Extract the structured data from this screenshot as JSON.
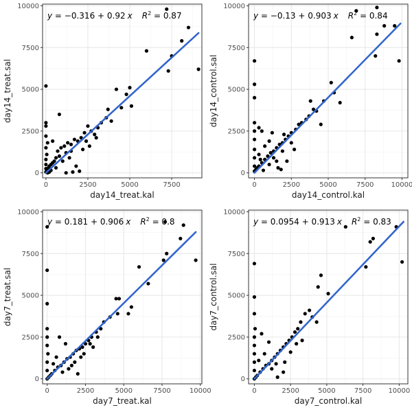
{
  "colors": {
    "panel_bg": "#ffffff",
    "grid_major": "#e6e6e6",
    "grid_minor": "#f2f2f2",
    "border": "#333333",
    "point": "#000000",
    "line": "#3366cc"
  },
  "chart_data": [
    {
      "type": "scatter",
      "id": "day14-treat",
      "xlabel": "day14_treat.kal",
      "ylabel": "day14_treat.sal",
      "xlim": [
        -200,
        9300
      ],
      "ylim": [
        -300,
        10100
      ],
      "xticks": [
        0,
        2500,
        5000,
        7500
      ],
      "xtick_labels": [
        "0",
        "2500",
        "5000",
        "7500"
      ],
      "yticks": [
        0,
        2500,
        5000,
        7500,
        10000
      ],
      "ytick_labels": [
        "0",
        "2500",
        "5000",
        "7500",
        "10000"
      ],
      "fit": {
        "intercept": -0.316,
        "slope": 0.92,
        "x_range": [
          0,
          9100
        ]
      },
      "equation": {
        "y_var": "y",
        "eq_sign": " = ",
        "intercept": "−0.316",
        "plus": " + ",
        "slope": "0.92",
        "x_var": "x",
        "r2_label": "R",
        "r2_sup": "2",
        "r2_value": " = 0.87"
      },
      "points": [
        [
          7200,
          9800
        ],
        [
          8500,
          8700
        ],
        [
          8100,
          7900
        ],
        [
          7500,
          7000
        ],
        [
          6000,
          7300
        ],
        [
          7300,
          6100
        ],
        [
          9100,
          6200
        ],
        [
          5000,
          5100
        ],
        [
          4200,
          5000
        ],
        [
          4800,
          4700
        ],
        [
          5100,
          4000
        ],
        [
          4500,
          3900
        ],
        [
          3700,
          3800
        ],
        [
          3600,
          3300
        ],
        [
          3900,
          3100
        ],
        [
          3300,
          3000
        ],
        [
          3100,
          2700
        ],
        [
          2700,
          2500
        ],
        [
          2500,
          2800
        ],
        [
          2300,
          2400
        ],
        [
          2900,
          2300
        ],
        [
          2100,
          2100
        ],
        [
          1900,
          1900
        ],
        [
          1700,
          2000
        ],
        [
          1500,
          1700
        ],
        [
          1300,
          1800
        ],
        [
          1100,
          1600
        ],
        [
          900,
          1500
        ],
        [
          1200,
          1200
        ],
        [
          800,
          1000
        ],
        [
          600,
          900
        ],
        [
          700,
          1300
        ],
        [
          500,
          700
        ],
        [
          400,
          600
        ],
        [
          300,
          500
        ],
        [
          200,
          400
        ],
        [
          150,
          300
        ],
        [
          100,
          200
        ],
        [
          50,
          100
        ],
        [
          0,
          50
        ],
        [
          0,
          250
        ],
        [
          0,
          500
        ],
        [
          0,
          800
        ],
        [
          50,
          1100
        ],
        [
          0,
          1500
        ],
        [
          100,
          1800
        ],
        [
          0,
          2200
        ],
        [
          0,
          2800
        ],
        [
          0,
          3000
        ],
        [
          0,
          5200
        ],
        [
          800,
          3500
        ],
        [
          1500,
          1300
        ],
        [
          1800,
          400
        ],
        [
          2000,
          100
        ],
        [
          1200,
          0
        ],
        [
          1600,
          50
        ],
        [
          2600,
          1600
        ],
        [
          2200,
          1400
        ],
        [
          3000,
          2100
        ],
        [
          1400,
          900
        ],
        [
          1000,
          700
        ],
        [
          600,
          300
        ],
        [
          300,
          150
        ],
        [
          200,
          50
        ],
        [
          100,
          0
        ],
        [
          400,
          1900
        ],
        [
          2400,
          1900
        ]
      ]
    },
    {
      "type": "scatter",
      "id": "day14-control",
      "xlabel": "day14_control.kal",
      "ylabel": "day14_control.sal",
      "xlim": [
        -400,
        10400
      ],
      "ylim": [
        -300,
        10100
      ],
      "xticks": [
        0,
        2500,
        5000,
        7500,
        10000
      ],
      "xtick_labels": [
        "0",
        "2500",
        "5000",
        "7500",
        "10000"
      ],
      "yticks": [
        0,
        2500,
        5000,
        7500,
        10000
      ],
      "ytick_labels": [
        "0",
        "2500",
        "5000",
        "7500",
        "10000"
      ],
      "fit": {
        "intercept": -0.13,
        "slope": 0.903,
        "x_range": [
          0,
          9900
        ]
      },
      "equation": {
        "y_var": "y",
        "eq_sign": " = ",
        "intercept": "−0.13",
        "plus": " + ",
        "slope": "0.903",
        "x_var": "x",
        "r2_label": "R",
        "r2_sup": "2",
        "r2_value": " = 0.84"
      },
      "points": [
        [
          6900,
          9700
        ],
        [
          8300,
          9900
        ],
        [
          8800,
          8800
        ],
        [
          9500,
          8800
        ],
        [
          8300,
          8300
        ],
        [
          6600,
          8100
        ],
        [
          9800,
          6700
        ],
        [
          8200,
          7000
        ],
        [
          0,
          6700
        ],
        [
          0,
          5300
        ],
        [
          5200,
          5400
        ],
        [
          5400,
          4800
        ],
        [
          5800,
          4200
        ],
        [
          4700,
          4300
        ],
        [
          4200,
          3700
        ],
        [
          3700,
          3400
        ],
        [
          3500,
          3200
        ],
        [
          3200,
          3000
        ],
        [
          3000,
          2900
        ],
        [
          2800,
          2600
        ],
        [
          2500,
          2400
        ],
        [
          2300,
          2200
        ],
        [
          2100,
          2000
        ],
        [
          1900,
          1800
        ],
        [
          1700,
          1700
        ],
        [
          1500,
          1500
        ],
        [
          1300,
          1300
        ],
        [
          1100,
          1200
        ],
        [
          900,
          1000
        ],
        [
          700,
          800
        ],
        [
          500,
          600
        ],
        [
          300,
          400
        ],
        [
          200,
          300
        ],
        [
          100,
          200
        ],
        [
          0,
          100
        ],
        [
          0,
          400
        ],
        [
          0,
          900
        ],
        [
          0,
          1400
        ],
        [
          0,
          2000
        ],
        [
          0,
          2500
        ],
        [
          0,
          3000
        ],
        [
          0,
          4500
        ],
        [
          500,
          2500
        ],
        [
          1000,
          1900
        ],
        [
          300,
          1100
        ],
        [
          700,
          1600
        ],
        [
          1500,
          700
        ],
        [
          1800,
          200
        ],
        [
          2200,
          700
        ],
        [
          2700,
          1400
        ],
        [
          4500,
          2900
        ],
        [
          4000,
          3800
        ],
        [
          3800,
          4300
        ],
        [
          1200,
          2400
        ],
        [
          300,
          2700
        ],
        [
          1600,
          300
        ],
        [
          2500,
          1800
        ],
        [
          600,
          150
        ],
        [
          1000,
          500
        ],
        [
          1300,
          900
        ],
        [
          1900,
          1300
        ],
        [
          400,
          800
        ],
        [
          2000,
          2300
        ]
      ]
    },
    {
      "type": "scatter",
      "id": "day7-treat",
      "xlabel": "day7_treat.kal",
      "ylabel": "day7_treat.sal",
      "xlim": [
        -300,
        10100
      ],
      "ylim": [
        -300,
        10100
      ],
      "xticks": [
        0,
        2500,
        5000,
        7500,
        10000
      ],
      "xtick_labels": [
        "0",
        "2500",
        "5000",
        "7500",
        "10000"
      ],
      "yticks": [
        0,
        2500,
        5000,
        7500,
        10000
      ],
      "ytick_labels": [
        "0",
        "2500",
        "5000",
        "7500",
        "10000"
      ],
      "fit": {
        "intercept": 0.181,
        "slope": 0.906,
        "x_range": [
          0,
          9700
        ]
      },
      "equation": {
        "y_var": "y",
        "eq_sign": " = ",
        "intercept": "0.181",
        "plus": " + ",
        "slope": "0.906",
        "x_var": "x",
        "r2_label": "R",
        "r2_sup": "2",
        "r2_value": " = 0.8"
      },
      "points": [
        [
          7700,
          9400
        ],
        [
          8900,
          9200
        ],
        [
          8700,
          8400
        ],
        [
          7800,
          7500
        ],
        [
          7600,
          7100
        ],
        [
          9700,
          7100
        ],
        [
          6000,
          6700
        ],
        [
          6600,
          5700
        ],
        [
          4500,
          4800
        ],
        [
          4700,
          4800
        ],
        [
          5500,
          4300
        ],
        [
          5300,
          3900
        ],
        [
          4600,
          3900
        ],
        [
          0,
          9100
        ],
        [
          0,
          6500
        ],
        [
          0,
          4500
        ],
        [
          0,
          3000
        ],
        [
          0,
          2500
        ],
        [
          0,
          2000
        ],
        [
          50,
          1500
        ],
        [
          0,
          1000
        ],
        [
          3700,
          3400
        ],
        [
          3500,
          3000
        ],
        [
          3200,
          2800
        ],
        [
          2900,
          2500
        ],
        [
          2700,
          2300
        ],
        [
          2500,
          2100
        ],
        [
          2300,
          1900
        ],
        [
          2100,
          1800
        ],
        [
          1900,
          1700
        ],
        [
          1700,
          1500
        ],
        [
          1500,
          1300
        ],
        [
          1300,
          1200
        ],
        [
          1100,
          1000
        ],
        [
          900,
          800
        ],
        [
          700,
          700
        ],
        [
          500,
          500
        ],
        [
          300,
          300
        ],
        [
          200,
          200
        ],
        [
          100,
          100
        ],
        [
          0,
          0
        ],
        [
          0,
          500
        ],
        [
          800,
          2500
        ],
        [
          1200,
          2100
        ],
        [
          1600,
          800
        ],
        [
          2000,
          300
        ],
        [
          1800,
          1000
        ],
        [
          2400,
          1500
        ],
        [
          2800,
          2100
        ],
        [
          3300,
          2500
        ],
        [
          4100,
          3700
        ],
        [
          600,
          1300
        ],
        [
          400,
          900
        ],
        [
          1000,
          400
        ],
        [
          1400,
          600
        ],
        [
          3000,
          1900
        ],
        [
          2200,
          1300
        ]
      ]
    },
    {
      "type": "scatter",
      "id": "day7-control",
      "xlabel": "day7_control.kal",
      "ylabel": "day7_control.sal",
      "xlim": [
        -400,
        10600
      ],
      "ylim": [
        -300,
        10100
      ],
      "xticks": [
        0,
        2500,
        5000,
        7500,
        10000
      ],
      "xtick_labels": [
        "0",
        "2500",
        "5000",
        "7500",
        "10000"
      ],
      "yticks": [
        0,
        2500,
        5000,
        7500,
        10000
      ],
      "ytick_labels": [
        "0",
        "2500",
        "5000",
        "7500",
        "10000"
      ],
      "fit": {
        "intercept": 0.0954,
        "slope": 0.913,
        "x_range": [
          0,
          10300
        ]
      },
      "equation": {
        "y_var": "y",
        "eq_sign": " = ",
        "intercept": "0.0954",
        "plus": " + ",
        "slope": "0.913",
        "x_var": "x",
        "r2_label": "R",
        "r2_sup": "2",
        "r2_value": " = 0.83"
      },
      "points": [
        [
          6300,
          9100
        ],
        [
          9800,
          9100
        ],
        [
          8200,
          8400
        ],
        [
          8000,
          8200
        ],
        [
          7700,
          6700
        ],
        [
          10200,
          7000
        ],
        [
          0,
          6900
        ],
        [
          0,
          4900
        ],
        [
          0,
          3900
        ],
        [
          4600,
          6200
        ],
        [
          4400,
          5500
        ],
        [
          5100,
          5100
        ],
        [
          3800,
          4100
        ],
        [
          4000,
          3700
        ],
        [
          3500,
          3900
        ],
        [
          3200,
          3400
        ],
        [
          3000,
          3000
        ],
        [
          2800,
          2800
        ],
        [
          2600,
          2500
        ],
        [
          2400,
          2300
        ],
        [
          2200,
          2100
        ],
        [
          2000,
          1900
        ],
        [
          1800,
          1700
        ],
        [
          1600,
          1500
        ],
        [
          1400,
          1300
        ],
        [
          1200,
          1100
        ],
        [
          1000,
          900
        ],
        [
          800,
          800
        ],
        [
          600,
          600
        ],
        [
          400,
          400
        ],
        [
          200,
          200
        ],
        [
          100,
          100
        ],
        [
          0,
          0
        ],
        [
          0,
          500
        ],
        [
          0,
          1000
        ],
        [
          0,
          1500
        ],
        [
          0,
          2000
        ],
        [
          0,
          2500
        ],
        [
          50,
          3000
        ],
        [
          500,
          2700
        ],
        [
          1000,
          2200
        ],
        [
          1500,
          900
        ],
        [
          2000,
          400
        ],
        [
          1600,
          100
        ],
        [
          2500,
          1600
        ],
        [
          2900,
          2100
        ],
        [
          3300,
          2300
        ],
        [
          700,
          1500
        ],
        [
          300,
          1100
        ],
        [
          1200,
          600
        ],
        [
          2100,
          1000
        ],
        [
          4300,
          3400
        ]
      ]
    }
  ]
}
